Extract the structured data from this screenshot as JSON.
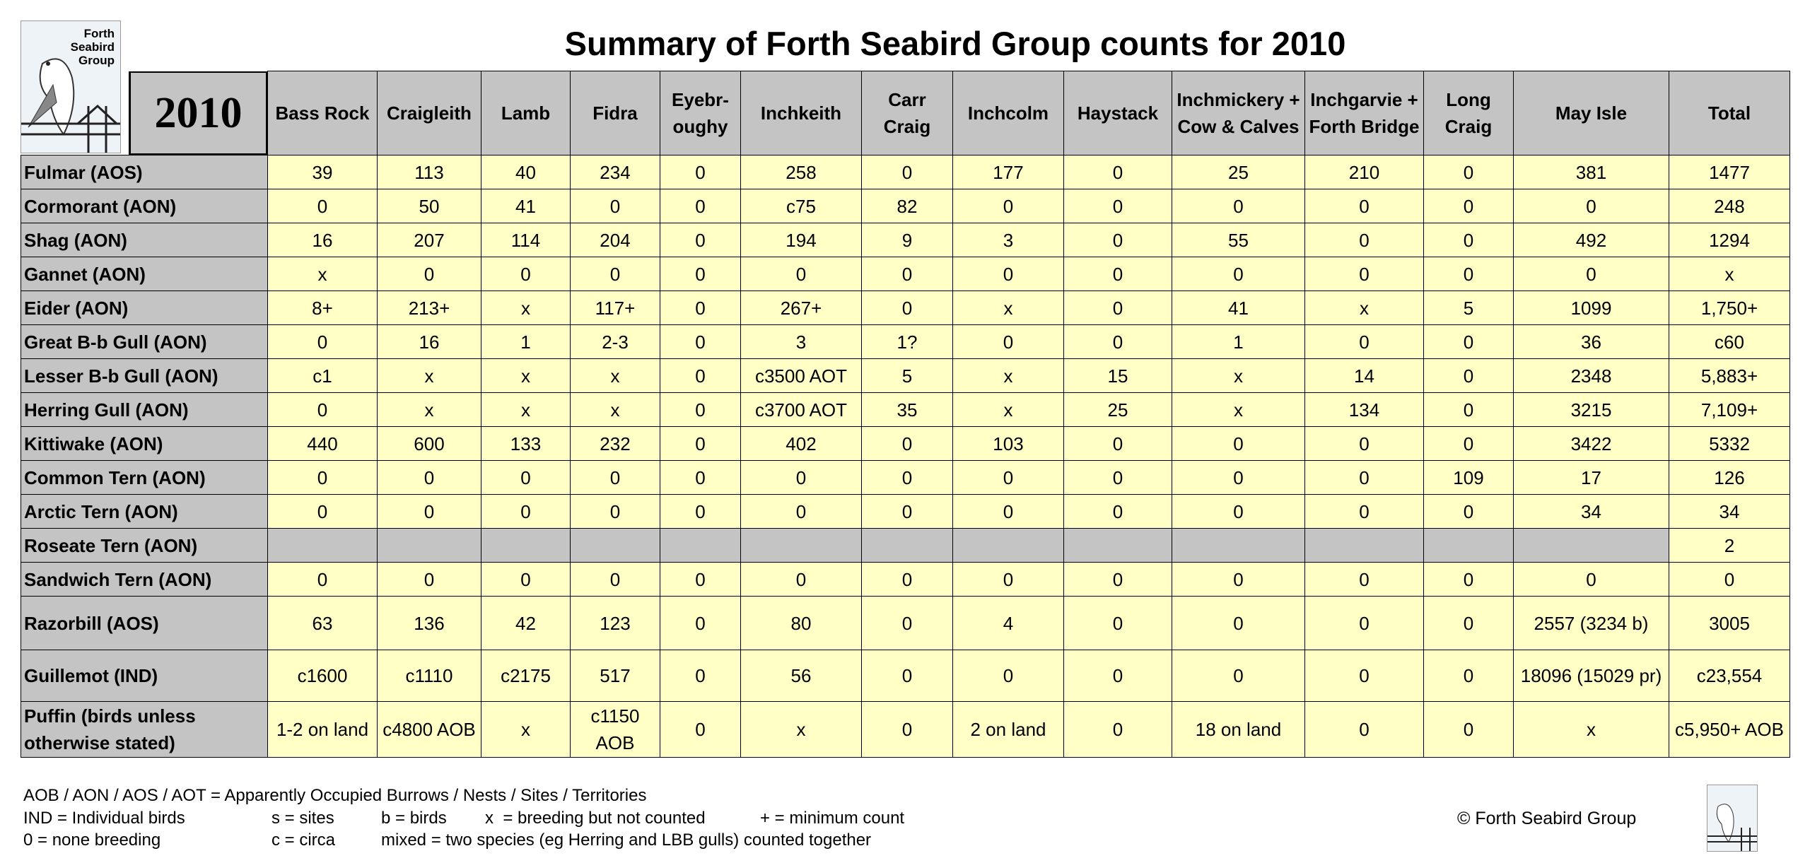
{
  "logo": [
    "Forth",
    "Seabird",
    "Group"
  ],
  "title": "Summary of Forth Seabird Group counts for 2010",
  "table": {
    "year": "2010",
    "columns": [
      "Bass Rock",
      "Craigleith",
      "Lamb",
      "Fidra",
      "Eyebr-oughy",
      "Inchkeith",
      "Carr Craig",
      "Inchcolm",
      "Haystack",
      "Inchmickery + Cow & Calves",
      "Inchgarvie + Forth Bridge",
      "Long Craig",
      "May Isle",
      "Total"
    ],
    "rows": [
      {
        "label": "Fulmar (AOS)",
        "cells": [
          "39",
          "113",
          "40",
          "234",
          "0",
          "258",
          "0",
          "177",
          "0",
          "25",
          "210",
          "0",
          "381",
          "1477"
        ]
      },
      {
        "label": "Cormorant (AON)",
        "cells": [
          "0",
          "50",
          "41",
          "0",
          "0",
          "c75",
          "82",
          "0",
          "0",
          "0",
          "0",
          "0",
          "0",
          "248"
        ]
      },
      {
        "label": "Shag (AON)",
        "cells": [
          "16",
          "207",
          "114",
          "204",
          "0",
          "194",
          "9",
          "3",
          "0",
          "55",
          "0",
          "0",
          "492",
          "1294"
        ]
      },
      {
        "label": "Gannet (AON)",
        "cells": [
          "x",
          "0",
          "0",
          "0",
          "0",
          "0",
          "0",
          "0",
          "0",
          "0",
          "0",
          "0",
          "0",
          "x"
        ]
      },
      {
        "label": "Eider (AON)",
        "cells": [
          "8+",
          "213+",
          "x",
          "117+",
          "0",
          "267+",
          "0",
          "x",
          "0",
          "41",
          "x",
          "5",
          "1099",
          "1,750+"
        ]
      },
      {
        "label": "Great B-b Gull (AON)",
        "cells": [
          "0",
          "16",
          "1",
          "2-3",
          "0",
          "3",
          "1?",
          "0",
          "0",
          "1",
          "0",
          "0",
          "36",
          "c60"
        ]
      },
      {
        "label": "Lesser B-b Gull (AON)",
        "cells": [
          "c1",
          "x",
          "x",
          "x",
          "0",
          "c3500 AOT",
          "5",
          "x",
          "15",
          "x",
          "14",
          "0",
          "2348",
          "5,883+"
        ]
      },
      {
        "label": "Herring Gull (AON)",
        "cells": [
          "0",
          "x",
          "x",
          "x",
          "0",
          "c3700 AOT",
          "35",
          "x",
          "25",
          "x",
          "134",
          "0",
          "3215",
          "7,109+"
        ]
      },
      {
        "label": "Kittiwake (AON)",
        "cells": [
          "440",
          "600",
          "133",
          "232",
          "0",
          "402",
          "0",
          "103",
          "0",
          "0",
          "0",
          "0",
          "3422",
          "5332"
        ]
      },
      {
        "label": "Common Tern (AON)",
        "cells": [
          "0",
          "0",
          "0",
          "0",
          "0",
          "0",
          "0",
          "0",
          "0",
          "0",
          "0",
          "109",
          "17",
          "126"
        ]
      },
      {
        "label": "Arctic Tern (AON)",
        "cells": [
          "0",
          "0",
          "0",
          "0",
          "0",
          "0",
          "0",
          "0",
          "0",
          "0",
          "0",
          "0",
          "34",
          "34"
        ]
      },
      {
        "label": "Roseate Tern (AON)",
        "cells": [
          null,
          null,
          null,
          null,
          null,
          null,
          null,
          null,
          null,
          null,
          null,
          null,
          null,
          "2"
        ]
      },
      {
        "label": "Sandwich Tern (AON)",
        "cells": [
          "0",
          "0",
          "0",
          "0",
          "0",
          "0",
          "0",
          "0",
          "0",
          "0",
          "0",
          "0",
          "0",
          "0"
        ]
      },
      {
        "label": "Razorbill (AOS)",
        "cells": [
          "63",
          "136",
          "42",
          "123",
          "0",
          "80",
          "0",
          "4",
          "0",
          "0",
          "0",
          "0",
          "2557 (3234 b)",
          "3005"
        ]
      },
      {
        "label": "Guillemot (IND)",
        "cells": [
          "c1600",
          "c1110",
          "c2175",
          "517",
          "0",
          "56",
          "0",
          "0",
          "0",
          "0",
          "0",
          "0",
          "18096 (15029 pr)",
          "c23,554"
        ]
      },
      {
        "label": "Puffin (birds unless otherwise stated)",
        "cells": [
          "1-2 on land",
          "c4800 AOB",
          "x",
          "c1150 AOB",
          "0",
          "x",
          "0",
          "2 on land",
          "0",
          "18 on land",
          "0",
          "0",
          "x",
          "c5,950+ AOB"
        ]
      }
    ]
  },
  "notes": [
    [
      "AOB / AON / AOS / AOT = Apparently Occupied Burrows / Nests / Sites / Territories"
    ],
    [
      "IND = Individual birds",
      "s = sites",
      "b = birds",
      "x  = breeding but not counted",
      "+ = minimum count"
    ],
    [
      "0 = none breeding",
      "c = circa",
      "mixed = two species (eg Herring and LBB gulls) counted together"
    ]
  ],
  "copyright": "© Forth Seabird Group"
}
